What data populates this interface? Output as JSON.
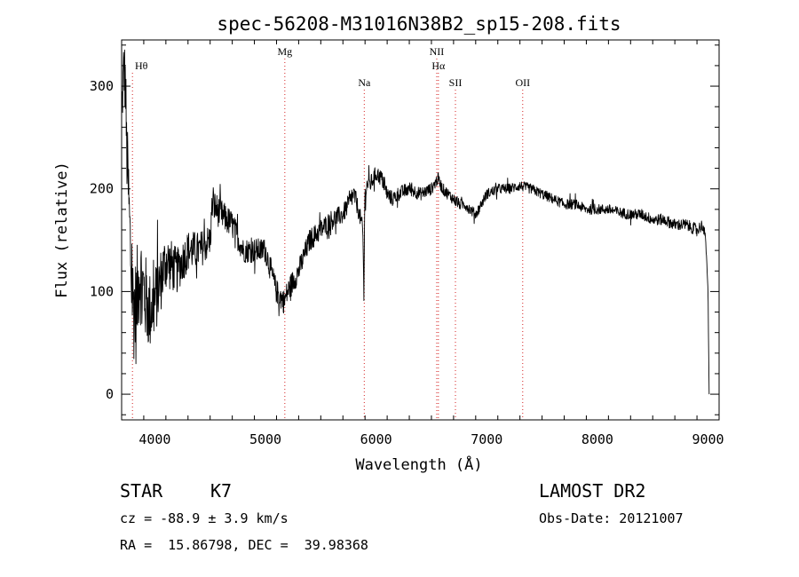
{
  "chart_data": {
    "type": "line",
    "title": "spec-56208-M31016N38B2_sp15-208.fits",
    "xlabel": "Wavelength (Å)",
    "ylabel": "Flux (relative)",
    "xlim": [
      3700,
      9100
    ],
    "ylim": [
      -25,
      345
    ],
    "x_ticks": [
      4000,
      5000,
      6000,
      7000,
      8000,
      9000
    ],
    "y_ticks": [
      0,
      100,
      200,
      300
    ],
    "grid": false,
    "spectral_lines": [
      {
        "name": "Hθ",
        "wavelength": 3798,
        "tier": 1
      },
      {
        "name": "Mg",
        "wavelength": 5175,
        "tier": 0
      },
      {
        "name": "Na",
        "wavelength": 5893,
        "tier": 2
      },
      {
        "name": "NII",
        "wavelength": 6548,
        "tier": 0
      },
      {
        "name": "Hα",
        "wavelength": 6563,
        "tier": 1
      },
      {
        "name": "SII",
        "wavelength": 6717,
        "tier": 2
      },
      {
        "name": "OII",
        "wavelength": 7325,
        "tier": 2
      }
    ],
    "spectrum_anchors": {
      "x": [
        3700,
        3720,
        3735,
        3745,
        3760,
        3780,
        3800,
        3830,
        3860,
        3900,
        3950,
        4000,
        4100,
        4200,
        4300,
        4400,
        4500,
        4520,
        4600,
        4700,
        4800,
        4900,
        5000,
        5100,
        5170,
        5200,
        5300,
        5400,
        5500,
        5600,
        5700,
        5800,
        5850,
        5880,
        5890,
        5895,
        5900,
        5920,
        5950,
        6000,
        6050,
        6100,
        6150,
        6200,
        6300,
        6400,
        6500,
        6560,
        6600,
        6650,
        6700,
        6750,
        6800,
        6850,
        6900,
        6950,
        7000,
        7100,
        7200,
        7300,
        7400,
        7500,
        7600,
        7700,
        7800,
        7900,
        8000,
        8100,
        8200,
        8300,
        8400,
        8500,
        8600,
        8700,
        8800,
        8900,
        8950,
        8980,
        9000,
        9010
      ],
      "y": [
        270,
        320,
        300,
        240,
        200,
        140,
        90,
        80,
        120,
        100,
        80,
        90,
        130,
        120,
        140,
        140,
        150,
        185,
        175,
        165,
        140,
        140,
        140,
        100,
        90,
        100,
        120,
        150,
        160,
        170,
        175,
        195,
        175,
        160,
        90,
        170,
        195,
        205,
        205,
        215,
        210,
        195,
        190,
        195,
        200,
        195,
        200,
        210,
        200,
        195,
        190,
        185,
        185,
        180,
        175,
        185,
        195,
        200,
        200,
        203,
        200,
        195,
        190,
        185,
        185,
        180,
        180,
        180,
        177,
        175,
        175,
        170,
        170,
        165,
        165,
        160,
        165,
        150,
        100,
        0
      ]
    },
    "noise_profile": {
      "x": [
        3700,
        3800,
        3900,
        4000,
        4200,
        4400,
        4600,
        4800,
        5000,
        5200,
        5600,
        6000,
        6500,
        7000,
        8000,
        9000
      ],
      "amplitude": [
        25,
        55,
        45,
        35,
        22,
        18,
        15,
        12,
        12,
        12,
        10,
        8,
        6,
        5,
        5,
        6
      ]
    }
  },
  "info": {
    "object_type": "STAR",
    "subclass": "K7",
    "redshift": "cz = -88.9 ± 3.9 km/s",
    "coordinates": "RA =  15.86798, DEC =  39.98368",
    "survey": "LAMOST DR2",
    "obs_date": "Obs-Date: 20121007"
  }
}
